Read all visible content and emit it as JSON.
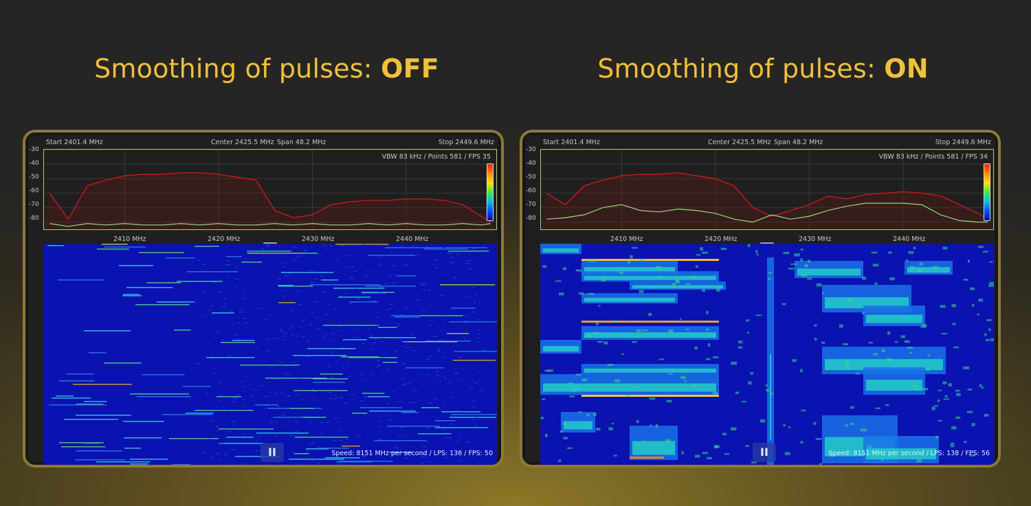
{
  "titles": {
    "left": {
      "prefix": "Smoothing of pulses: ",
      "state": "OFF"
    },
    "right": {
      "prefix": "Smoothing of pulses: ",
      "state": "ON"
    }
  },
  "panels": [
    {
      "start": "Start 2401.4 MHz",
      "center": "Center 2425.5 MHz",
      "span": "Span 48.2 MHz",
      "stop": "Stop 2449.6 MHz",
      "readout": "VBW 83 kHz / Points 581 / FPS 35",
      "speed": "Speed: 8151 MHz per second / LPS: 136 / FPS: 50",
      "pause_label": "II",
      "smoothing": false
    },
    {
      "start": "Start 2401.4 MHz",
      "center": "Center 2425.5 MHz",
      "span": "Span 48.2 MHz",
      "stop": "Stop 2449.6 MHz",
      "readout": "VBW 83 kHz / Points 581 / FPS 34",
      "speed": "Speed: 8151 MHz per second / LPS: 138 / FPS: 56",
      "pause_label": "II",
      "smoothing": true
    }
  ],
  "y_ticks": [
    "-30",
    "-40",
    "-50",
    "-60",
    "-70",
    "-80"
  ],
  "x_ticks": [
    "2410 MHz",
    "2420 MHz",
    "2430 MHz",
    "2440 MHz"
  ],
  "colors": {
    "accent": "#f0c03a",
    "max_trace": "#e01818",
    "live_trace": "#8fe07a",
    "waterfall_bg": "#0a12b0"
  },
  "chart_data": [
    {
      "type": "line",
      "title": "",
      "xlabel": "",
      "ylabel": "",
      "xlim": [
        2401.4,
        2449.6
      ],
      "ylim": [
        -85,
        -30
      ],
      "x": [
        2402,
        2404,
        2406,
        2408,
        2410,
        2412,
        2414,
        2416,
        2418,
        2420,
        2422,
        2424,
        2426,
        2428,
        2430,
        2432,
        2434,
        2436,
        2438,
        2440,
        2442,
        2444,
        2446,
        2448,
        2449
      ],
      "series": [
        {
          "values": [
            -60,
            -78,
            -55,
            -51,
            -48,
            -47,
            -47,
            -46,
            -46,
            -47,
            -49,
            -51,
            -72,
            -77,
            -75,
            -68,
            -66,
            -65,
            -65,
            -64,
            -64,
            -65,
            -68,
            -76,
            -80
          ]
        },
        {
          "values": [
            -81,
            -83,
            -81,
            -82,
            -81,
            -82,
            -82,
            -81,
            -82,
            -81,
            -82,
            -82,
            -81,
            -82,
            -81,
            -82,
            -82,
            -81,
            -82,
            -81,
            -82,
            -82,
            -81,
            -82,
            -81
          ]
        }
      ]
    },
    {
      "type": "line",
      "title": "",
      "xlabel": "",
      "ylabel": "",
      "xlim": [
        2401.4,
        2449.6
      ],
      "ylim": [
        -85,
        -30
      ],
      "x": [
        2402,
        2404,
        2406,
        2408,
        2410,
        2412,
        2414,
        2416,
        2418,
        2420,
        2422,
        2424,
        2426,
        2428,
        2430,
        2432,
        2434,
        2436,
        2438,
        2440,
        2442,
        2444,
        2446,
        2448,
        2449
      ],
      "series": [
        {
          "values": [
            -60,
            -68,
            -55,
            -51,
            -48,
            -47,
            -47,
            -46,
            -48,
            -50,
            -55,
            -70,
            -76,
            -72,
            -68,
            -62,
            -64,
            -61,
            -60,
            -59,
            -60,
            -62,
            -68,
            -74,
            -78
          ]
        },
        {
          "values": [
            -78,
            -77,
            -75,
            -70,
            -68,
            -72,
            -73,
            -71,
            -72,
            -74,
            -78,
            -80,
            -75,
            -78,
            -76,
            -72,
            -69,
            -67,
            -67,
            -67,
            -68,
            -75,
            -79,
            -80,
            -80
          ]
        }
      ]
    }
  ]
}
